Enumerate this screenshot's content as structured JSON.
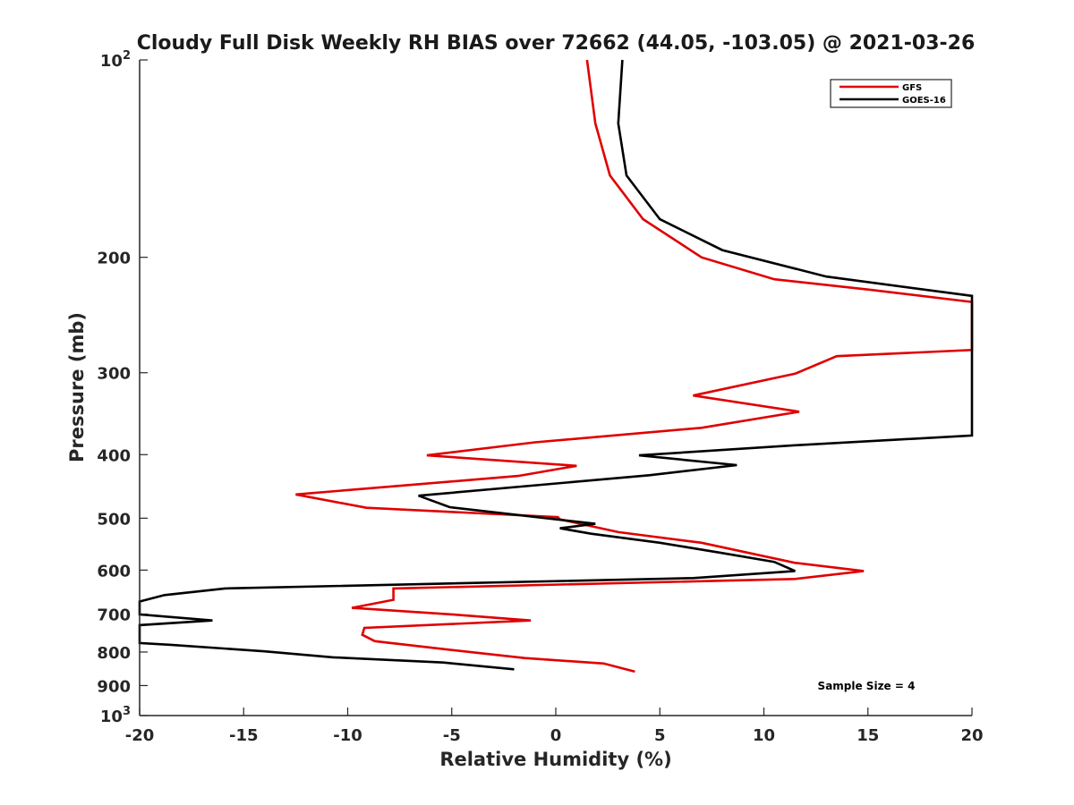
{
  "chart_data": {
    "type": "line",
    "title": "Cloudy Full Disk Weekly RH BIAS over 72662 (44.05, -103.05) @ 2021-03-26",
    "xlabel": "Relative Humidity (%)",
    "ylabel": "Pressure (mb)",
    "xlim": [
      -20,
      20
    ],
    "ylim": [
      100,
      1000
    ],
    "y_scale": "log",
    "y_reversed": true,
    "grid": false,
    "legend_position": "top-right",
    "x_ticks": [
      "-20",
      "-15",
      "-10",
      "-5",
      "0",
      "5",
      "10",
      "15",
      "20"
    ],
    "y_ticks": [
      {
        "value": 100,
        "base": "10",
        "exp": "2"
      },
      {
        "value": 200,
        "label": "200"
      },
      {
        "value": 300,
        "label": "300"
      },
      {
        "value": 400,
        "label": "400"
      },
      {
        "value": 500,
        "label": "500"
      },
      {
        "value": 600,
        "label": "600"
      },
      {
        "value": 700,
        "label": "700"
      },
      {
        "value": 800,
        "label": "800"
      },
      {
        "value": 900,
        "label": "900"
      },
      {
        "value": 1000,
        "base": "10",
        "exp": "3"
      }
    ],
    "annotation": "Sample Size = 4",
    "series": [
      {
        "name": "GFS",
        "color": "#e00000",
        "points": [
          [
            1.5,
            100
          ],
          [
            1.9,
            125
          ],
          [
            2.6,
            150
          ],
          [
            4.2,
            175
          ],
          [
            7.0,
            200
          ],
          [
            10.5,
            216
          ],
          [
            15.0,
            224
          ],
          [
            20.0,
            234
          ],
          [
            20.0,
            277
          ],
          [
            13.5,
            283
          ],
          [
            11.5,
            301
          ],
          [
            6.6,
            325
          ],
          [
            11.7,
            344
          ],
          [
            7.0,
            364
          ],
          [
            -1.0,
            383
          ],
          [
            -6.2,
            401
          ],
          [
            1.0,
            416
          ],
          [
            -1.8,
            431
          ],
          [
            -12.5,
            460
          ],
          [
            -9.1,
            482
          ],
          [
            0.1,
            498
          ],
          [
            0.2,
            502
          ],
          [
            3.0,
            525
          ],
          [
            7.0,
            545
          ],
          [
            11.5,
            585
          ],
          [
            14.8,
            602
          ],
          [
            11.5,
            619
          ],
          [
            -7.8,
            640
          ],
          [
            -7.8,
            666
          ],
          [
            -9.8,
            685
          ],
          [
            -5.0,
            701
          ],
          [
            -1.2,
            716
          ],
          [
            -9.2,
            735
          ],
          [
            -9.3,
            753
          ],
          [
            -8.7,
            770
          ],
          [
            -5.2,
            793
          ],
          [
            -1.5,
            817
          ],
          [
            2.3,
            833
          ],
          [
            3.8,
            857
          ]
        ]
      },
      {
        "name": "GOES-16",
        "color": "#000000",
        "points": [
          [
            3.2,
            100
          ],
          [
            3.0,
            125
          ],
          [
            3.4,
            150
          ],
          [
            5.0,
            175
          ],
          [
            8.0,
            195
          ],
          [
            13.0,
            214
          ],
          [
            20.0,
            229
          ],
          [
            20.0,
            374
          ],
          [
            11.5,
            387
          ],
          [
            4.0,
            401
          ],
          [
            8.7,
            415
          ],
          [
            4.5,
            430
          ],
          [
            -6.6,
            462
          ],
          [
            -5.1,
            481
          ],
          [
            1.9,
            510
          ],
          [
            0.2,
            518
          ],
          [
            1.7,
            528
          ],
          [
            5.0,
            545
          ],
          [
            8.0,
            565
          ],
          [
            10.5,
            583
          ],
          [
            11.5,
            602
          ],
          [
            6.6,
            617
          ],
          [
            -15.9,
            640
          ],
          [
            -18.8,
            655
          ],
          [
            -20.0,
            670
          ],
          [
            -20.0,
            701
          ],
          [
            -16.5,
            716
          ],
          [
            -20.0,
            728
          ],
          [
            -20.0,
            775
          ],
          [
            -18.5,
            780
          ],
          [
            -14.0,
            798
          ],
          [
            -10.7,
            815
          ],
          [
            -5.4,
            830
          ],
          [
            -2.0,
            850
          ]
        ]
      }
    ]
  }
}
